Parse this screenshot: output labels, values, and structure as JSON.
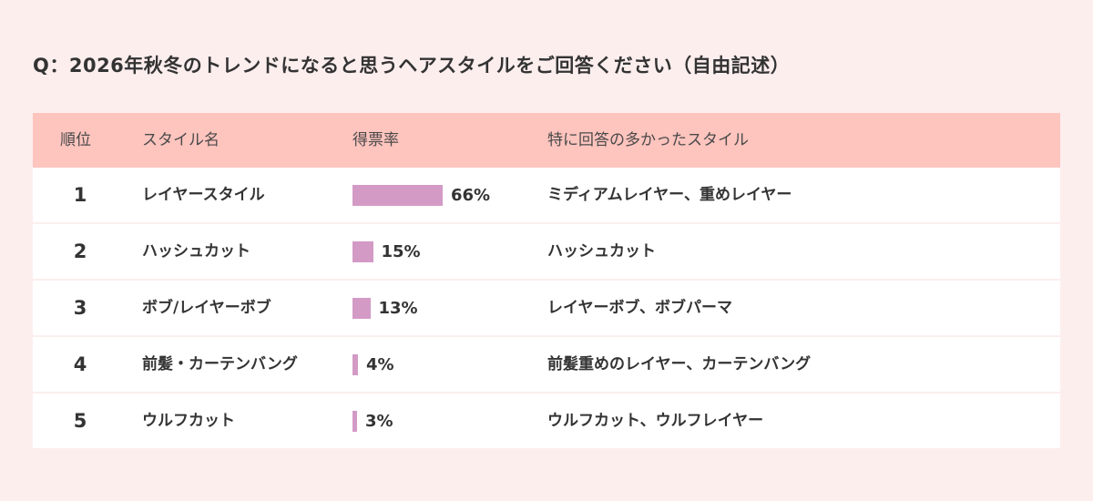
{
  "title": "Q：2026年秋冬のトレンドになると思うヘアスタイルをご回答ください（自由記述）",
  "columns": {
    "rank": "順位",
    "style": "スタイル名",
    "rate": "得票率",
    "top": "特に回答の多かったスタイル"
  },
  "colors": {
    "background": "#fdeeee",
    "header": "#fec4be",
    "bar": "#d39ac6"
  },
  "chart_data": {
    "type": "table",
    "title": "Q：2026年秋冬のトレンドになると思うヘアスタイルをご回答ください（自由記述）",
    "columns": [
      "順位",
      "スタイル名",
      "得票率",
      "特に回答の多かったスタイル"
    ],
    "rows": [
      {
        "rank": "1",
        "style": "レイヤースタイル",
        "value": 66,
        "label": "66%",
        "top": "ミディアムレイヤー、重めレイヤー"
      },
      {
        "rank": "2",
        "style": "ハッシュカット",
        "value": 15,
        "label": "15%",
        "top": "ハッシュカット"
      },
      {
        "rank": "3",
        "style": "ボブ/レイヤーボブ",
        "value": 13,
        "label": "13%",
        "top": "レイヤーボブ、ボブパーマ"
      },
      {
        "rank": "4",
        "style": "前髪・カーテンバング",
        "value": 4,
        "label": "4%",
        "top": "前髪重めのレイヤー、カーテンバング"
      },
      {
        "rank": "5",
        "style": "ウルフカット",
        "value": 3,
        "label": "3%",
        "top": "ウルフカット、ウルフレイヤー"
      }
    ]
  }
}
